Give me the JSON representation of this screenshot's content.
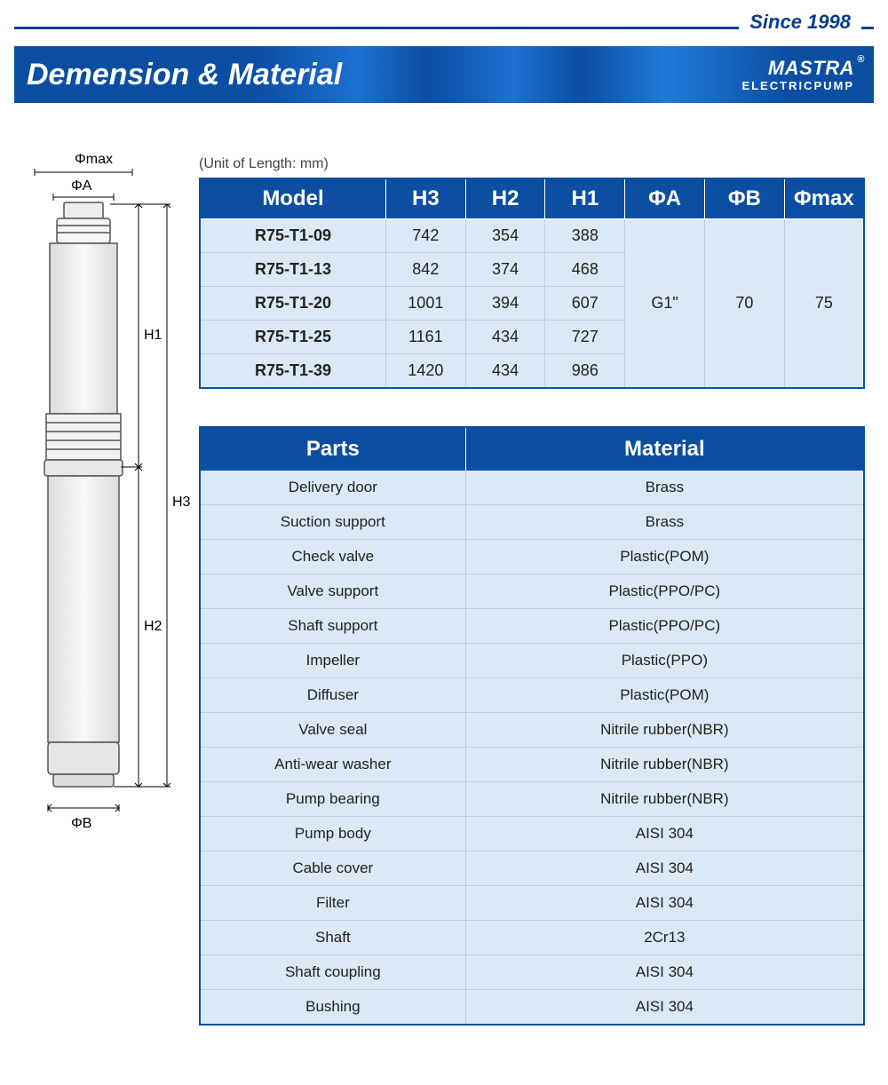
{
  "header": {
    "since": "Since 1998",
    "title": "Demension & Material",
    "brand_name": "MASTRA",
    "brand_sub": "ELECTRICPUMP"
  },
  "colors": {
    "primary": "#0b4ea2",
    "row_bg": "#dbe9f6",
    "row_border": "#b9cfe6",
    "text": "#222222",
    "white": "#ffffff"
  },
  "diagram": {
    "labels": {
      "phi_max": "Φmax",
      "phi_a": "ΦA",
      "phi_b": "ΦB",
      "h1": "H1",
      "h2": "H2",
      "h3": "H3"
    }
  },
  "unit_label": "(Unit of Length: mm)",
  "dims_table": {
    "columns": [
      "Model",
      "H3",
      "H2",
      "H1",
      "ΦA",
      "ΦB",
      "Φmax"
    ],
    "col_widths_pct": [
      28,
      12,
      12,
      12,
      12,
      12,
      12
    ],
    "header_fontsize": 24,
    "cell_fontsize": 18,
    "rows": [
      {
        "model": "R75-T1-09",
        "h3": 742,
        "h2": 354,
        "h1": 388
      },
      {
        "model": "R75-T1-13",
        "h3": 842,
        "h2": 374,
        "h1": 468
      },
      {
        "model": "R75-T1-20",
        "h3": 1001,
        "h2": 394,
        "h1": 607
      },
      {
        "model": "R75-T1-25",
        "h3": 1161,
        "h2": 434,
        "h1": 727
      },
      {
        "model": "R75-T1-39",
        "h3": 1420,
        "h2": 434,
        "h1": 986
      }
    ],
    "shared": {
      "phi_a": "G1\"",
      "phi_b": 70,
      "phi_max": 75
    }
  },
  "materials_table": {
    "columns": [
      "Parts",
      "Material"
    ],
    "col_widths_pct": [
      40,
      60
    ],
    "header_fontsize": 24,
    "cell_fontsize": 17,
    "rows": [
      {
        "part": "Delivery door",
        "material": "Brass"
      },
      {
        "part": "Suction support",
        "material": "Brass"
      },
      {
        "part": "Check valve",
        "material": "Plastic(POM)"
      },
      {
        "part": "Valve support",
        "material": "Plastic(PPO/PC)"
      },
      {
        "part": "Shaft support",
        "material": "Plastic(PPO/PC)"
      },
      {
        "part": "Impeller",
        "material": "Plastic(PPO)"
      },
      {
        "part": "Diffuser",
        "material": "Plastic(POM)"
      },
      {
        "part": "Valve seal",
        "material": "Nitrile rubber(NBR)"
      },
      {
        "part": "Anti-wear washer",
        "material": "Nitrile rubber(NBR)"
      },
      {
        "part": "Pump bearing",
        "material": "Nitrile rubber(NBR)"
      },
      {
        "part": "Pump body",
        "material": "AISI 304"
      },
      {
        "part": "Cable cover",
        "material": "AISI 304"
      },
      {
        "part": "Filter",
        "material": "AISI 304"
      },
      {
        "part": "Shaft",
        "material": "2Cr13"
      },
      {
        "part": "Shaft coupling",
        "material": "AISI 304"
      },
      {
        "part": "Bushing",
        "material": "AISI 304"
      }
    ]
  }
}
